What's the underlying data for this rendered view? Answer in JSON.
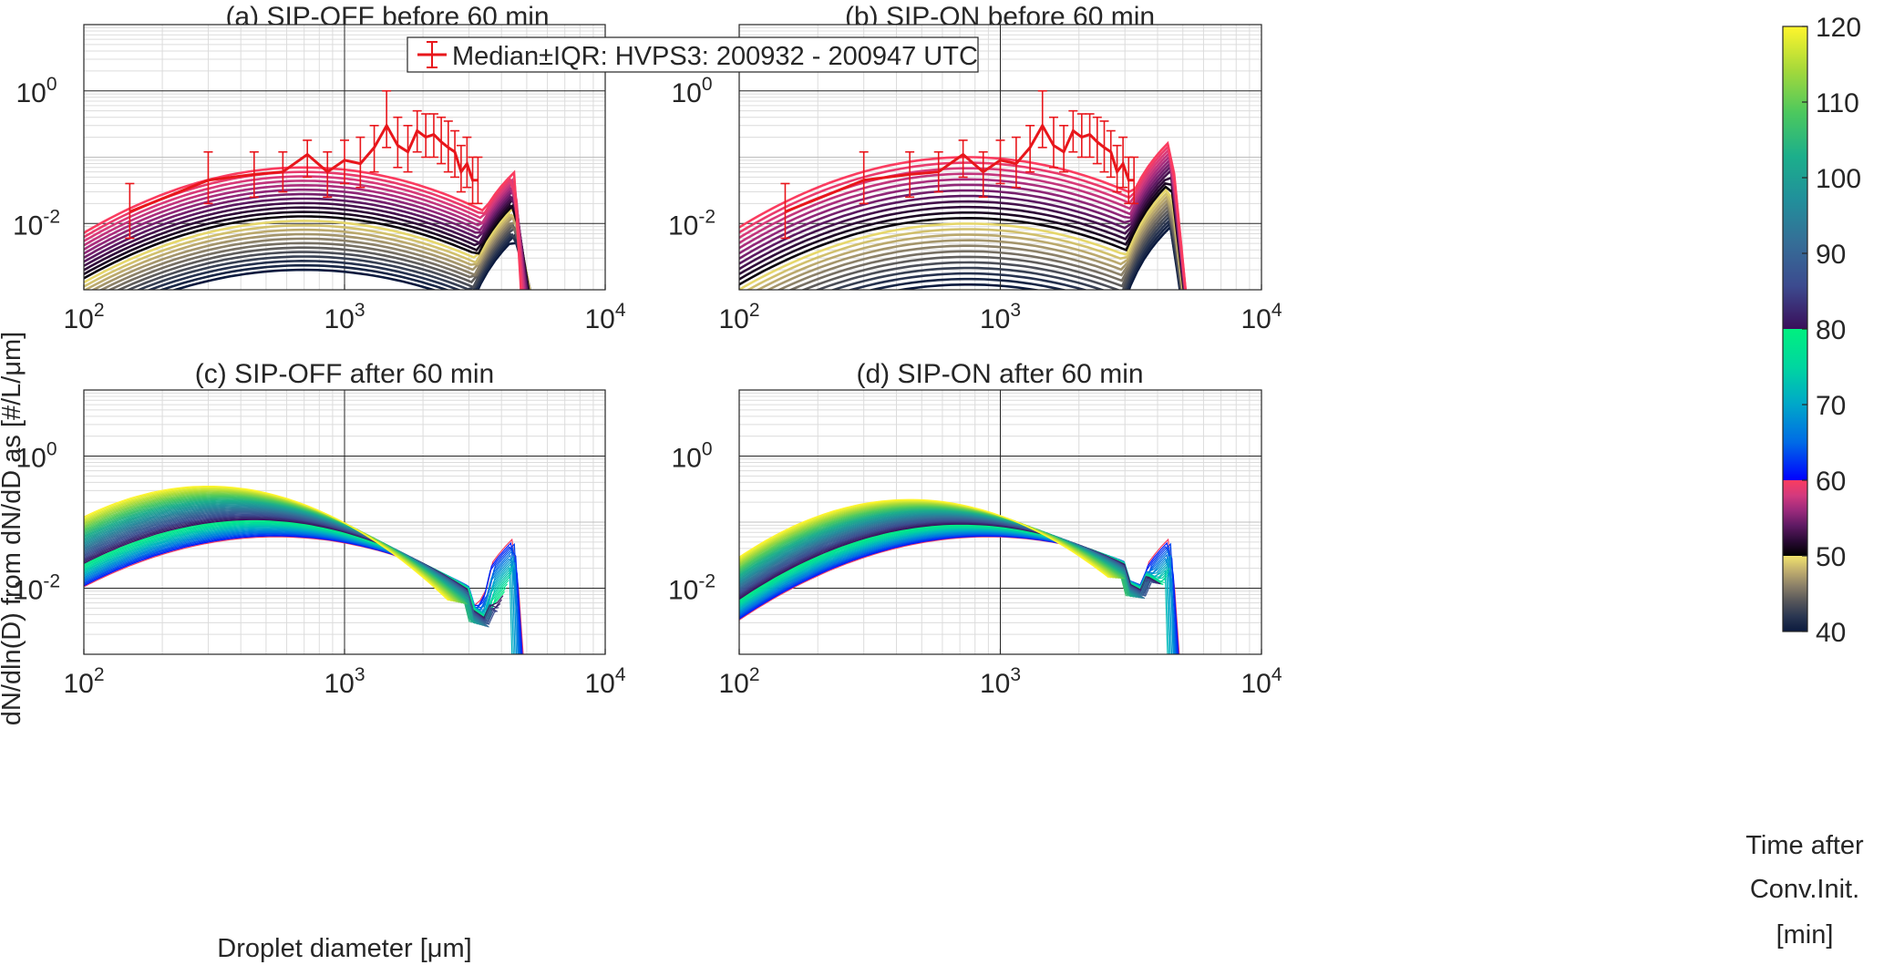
{
  "figure": {
    "ylabel": "dN/dln(D) from dN/dD as [#/L/μm]",
    "xlabel": "Droplet diameter [μm]",
    "legend_label": "Median±IQR: HVPS3: 200932 - 200947 UTC",
    "legend_color": "#e8161b",
    "colorbar": {
      "label_lines": [
        "Time after",
        "Conv.Init.",
        "[min]"
      ],
      "ticks": [
        "40",
        "50",
        "60",
        "70",
        "80",
        "90",
        "100",
        "110",
        "120"
      ],
      "range": [
        40,
        120
      ],
      "segments": [
        {
          "from": 40,
          "to": 50,
          "colors": [
            "#0b1a3e",
            "#2a3651",
            "#56565a",
            "#8a7f68",
            "#c0ad6e",
            "#f1e36c"
          ]
        },
        {
          "from": 50,
          "to": 60,
          "colors": [
            "#000000",
            "#2a0a35",
            "#5e1a63",
            "#9b2a7c",
            "#d33a7e",
            "#fa3c60"
          ]
        },
        {
          "from": 60,
          "to": 80,
          "colors": [
            "#0000ff",
            "#006be6",
            "#00a7c9",
            "#00d6a0",
            "#00f07f"
          ]
        },
        {
          "from": 80,
          "to": 120,
          "colors": [
            "#3a0e5a",
            "#3c4b8f",
            "#356e97",
            "#21909b",
            "#1caf8b",
            "#4cc85e",
            "#a6d93a",
            "#fff52c"
          ]
        }
      ]
    }
  },
  "chart_data": [
    {
      "id": "a",
      "type": "line",
      "title": "(a) SIP-OFF before 60 min",
      "xscale": "log",
      "yscale": "log",
      "xlim": [
        100,
        10000
      ],
      "ylim": [
        0.001,
        10
      ],
      "xticks": [
        "10^2",
        "10^3",
        "10^4"
      ],
      "yticks": [
        "10^-2",
        "10^0"
      ],
      "median": {
        "x": [
          150,
          300,
          450,
          580,
          720,
          860,
          1000,
          1150,
          1300,
          1450,
          1600,
          1750,
          1900,
          2050,
          2200,
          2350,
          2500,
          2650,
          2800,
          2950,
          3100,
          3250
        ],
        "y": [
          0.015,
          0.045,
          0.055,
          0.06,
          0.11,
          0.06,
          0.09,
          0.08,
          0.14,
          0.3,
          0.15,
          0.12,
          0.25,
          0.2,
          0.22,
          0.17,
          0.14,
          0.12,
          0.06,
          0.08,
          0.045,
          0.045
        ],
        "lo": [
          0.006,
          0.02,
          0.025,
          0.03,
          0.05,
          0.025,
          0.04,
          0.035,
          0.06,
          0.14,
          0.07,
          0.06,
          0.12,
          0.1,
          0.1,
          0.08,
          0.06,
          0.05,
          0.03,
          0.035,
          0.02,
          0.02
        ],
        "hi": [
          0.04,
          0.12,
          0.12,
          0.12,
          0.18,
          0.12,
          0.18,
          0.2,
          0.3,
          1.0,
          0.4,
          0.3,
          0.5,
          0.45,
          0.45,
          0.4,
          0.35,
          0.25,
          0.15,
          0.2,
          0.1,
          0.1
        ]
      },
      "model_series": {
        "times": [
          40,
          60
        ],
        "count": 24,
        "shape": "before",
        "peak_d": [
          700,
          700
        ],
        "peak_y": [
          0.002,
          0.07
        ],
        "width": [
          0.9,
          0.85
        ],
        "spike_d": 4500,
        "spike_y": [
          0.006,
          0.06
        ],
        "cut_d": [
          8000,
          5000
        ]
      }
    },
    {
      "id": "b",
      "type": "line",
      "title": "(b) SIP-ON before 60 min",
      "xscale": "log",
      "yscale": "log",
      "xlim": [
        100,
        10000
      ],
      "ylim": [
        0.001,
        10
      ],
      "xticks": [
        "10^2",
        "10^3",
        "10^4"
      ],
      "yticks": [
        "10^-2",
        "10^0"
      ],
      "median": {
        "x": [
          150,
          300,
          450,
          580,
          720,
          860,
          1000,
          1150,
          1300,
          1450,
          1600,
          1750,
          1900,
          2050,
          2200,
          2350,
          2500,
          2650,
          2800,
          2950,
          3100,
          3250
        ],
        "y": [
          0.015,
          0.045,
          0.055,
          0.06,
          0.11,
          0.06,
          0.09,
          0.08,
          0.14,
          0.3,
          0.15,
          0.12,
          0.25,
          0.2,
          0.22,
          0.17,
          0.14,
          0.12,
          0.06,
          0.08,
          0.045,
          0.045
        ],
        "lo": [
          0.006,
          0.02,
          0.025,
          0.03,
          0.05,
          0.025,
          0.04,
          0.035,
          0.06,
          0.14,
          0.07,
          0.06,
          0.12,
          0.1,
          0.1,
          0.08,
          0.06,
          0.05,
          0.03,
          0.035,
          0.02,
          0.02
        ],
        "hi": [
          0.04,
          0.12,
          0.12,
          0.12,
          0.18,
          0.12,
          0.18,
          0.2,
          0.3,
          1.0,
          0.4,
          0.3,
          0.5,
          0.45,
          0.45,
          0.4,
          0.35,
          0.25,
          0.15,
          0.2,
          0.1,
          0.1
        ]
      },
      "model_series": {
        "times": [
          40,
          60
        ],
        "count": 24,
        "shape": "before",
        "peak_d": [
          750,
          750
        ],
        "peak_y": [
          0.0012,
          0.1
        ],
        "width": [
          0.9,
          0.85
        ],
        "spike_d": 4500,
        "spike_y": [
          0.009,
          0.18
        ],
        "cut_d": [
          6000,
          5500
        ]
      }
    },
    {
      "id": "c",
      "type": "line",
      "title": "(c) SIP-OFF after 60 min",
      "xscale": "log",
      "yscale": "log",
      "xlim": [
        100,
        10000
      ],
      "ylim": [
        0.001,
        10
      ],
      "xticks": [
        "10^2",
        "10^3",
        "10^4"
      ],
      "yticks": [
        "10^-2",
        "10^0"
      ],
      "model_series": {
        "times": [
          60,
          120
        ],
        "count": 60,
        "shape": "after",
        "peak_d": [
          550,
          300
        ],
        "peak_y": [
          0.06,
          0.35
        ],
        "width": [
          0.85,
          0.7
        ],
        "spike_d": 4500,
        "spike_y": [
          0.06,
          0.0005
        ],
        "cut_d": [
          5200,
          2500
        ]
      }
    },
    {
      "id": "d",
      "type": "line",
      "title": "(d) SIP-ON after 60 min",
      "xscale": "log",
      "yscale": "log",
      "xlim": [
        100,
        10000
      ],
      "ylim": [
        0.001,
        10
      ],
      "xticks": [
        "10^2",
        "10^3",
        "10^4"
      ],
      "yticks": [
        "10^-2",
        "10^0"
      ],
      "model_series": {
        "times": [
          60,
          120
        ],
        "count": 60,
        "shape": "after",
        "peak_d": [
          900,
          450
        ],
        "peak_y": [
          0.06,
          0.22
        ],
        "width": [
          0.85,
          0.7
        ],
        "spike_d": 4500,
        "spike_y": [
          0.06,
          0.0005
        ],
        "cut_d": [
          5200,
          2600
        ]
      }
    }
  ]
}
